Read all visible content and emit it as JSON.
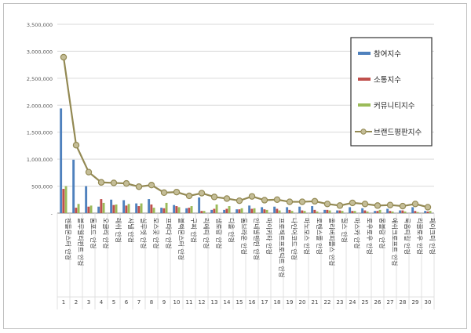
{
  "chart_data": {
    "type": "bar",
    "title": "",
    "xlabel": "",
    "ylabel": "",
    "ylim": [
      0,
      3500000
    ],
    "y_ticks": [
      "-",
      "500,000",
      "1,000,000",
      "1,500,000",
      "2,000,000",
      "2,500,000",
      "3,000,000",
      "3,500,000"
    ],
    "grid": true,
    "legend_position": "right",
    "ranks": [
      "1",
      "2",
      "3",
      "4",
      "5",
      "6",
      "7",
      "8",
      "9",
      "10",
      "11",
      "12",
      "13",
      "14",
      "15",
      "16",
      "17",
      "18",
      "19",
      "20",
      "21",
      "22",
      "23",
      "24",
      "25",
      "26",
      "27",
      "28",
      "29",
      "30"
    ],
    "categories": [
      "젠틀몬스터 안경",
      "블루엘리펀트 안경",
      "톰포드 안경",
      "오클리 안경",
      "레쉬 안경",
      "샤넬 안경",
      "실루엣 안경",
      "모스콧 안경",
      "프라다 안경",
      "블랙몬스터 안경",
      "구찌 안경",
      "리에티 안경",
      "생로랑 안경",
      "디올 안경",
      "톰브라운 안경",
      "안네발렌틴 안경",
      "마이키타 안경",
      "프로젝트프로덕트 안경",
      "나인어코드 안경",
      "마노모스 안경",
      "로렌스폴 안경",
      "올리버피플스 안경",
      "질스 안경",
      "마스카 안경",
      "로우로우 안경",
      "몽블랑 안경",
      "애쉬크로프트 안경",
      "룩옵티컬 안경",
      "리끌로우 안경",
      "페이크미 안경"
    ],
    "series": [
      {
        "name": "참여지수",
        "color": "#4f81bd",
        "values": [
          1940000,
          990000,
          500000,
          120000,
          250000,
          240000,
          180000,
          260000,
          100000,
          150000,
          90000,
          290000,
          60000,
          60000,
          70000,
          140000,
          110000,
          120000,
          110000,
          120000,
          130000,
          60000,
          50000,
          110000,
          90000,
          40000,
          80000,
          50000,
          110000,
          40000
        ]
      },
      {
        "name": "소통지수",
        "color": "#c0504d",
        "values": [
          450000,
          100000,
          120000,
          260000,
          150000,
          140000,
          130000,
          160000,
          90000,
          130000,
          100000,
          40000,
          80000,
          80000,
          70000,
          80000,
          70000,
          80000,
          60000,
          50000,
          60000,
          60000,
          50000,
          40000,
          50000,
          40000,
          40000,
          50000,
          40000,
          30000
        ]
      },
      {
        "name": "커뮤니티지수",
        "color": "#9bbb59",
        "values": [
          500000,
          170000,
          140000,
          190000,
          160000,
          170000,
          180000,
          100000,
          190000,
          110000,
          130000,
          40000,
          160000,
          130000,
          90000,
          90000,
          60000,
          50000,
          40000,
          40000,
          30000,
          50000,
          40000,
          40000,
          30000,
          60000,
          30000,
          30000,
          20000,
          40000
        ]
      },
      {
        "name": "브랜드평판지수",
        "color": "#938953",
        "values": [
          2890000,
          1260000,
          760000,
          570000,
          560000,
          550000,
          490000,
          520000,
          380000,
          390000,
          320000,
          370000,
          300000,
          270000,
          230000,
          310000,
          240000,
          250000,
          210000,
          210000,
          220000,
          170000,
          140000,
          190000,
          170000,
          140000,
          150000,
          130000,
          170000,
          110000
        ]
      }
    ]
  }
}
